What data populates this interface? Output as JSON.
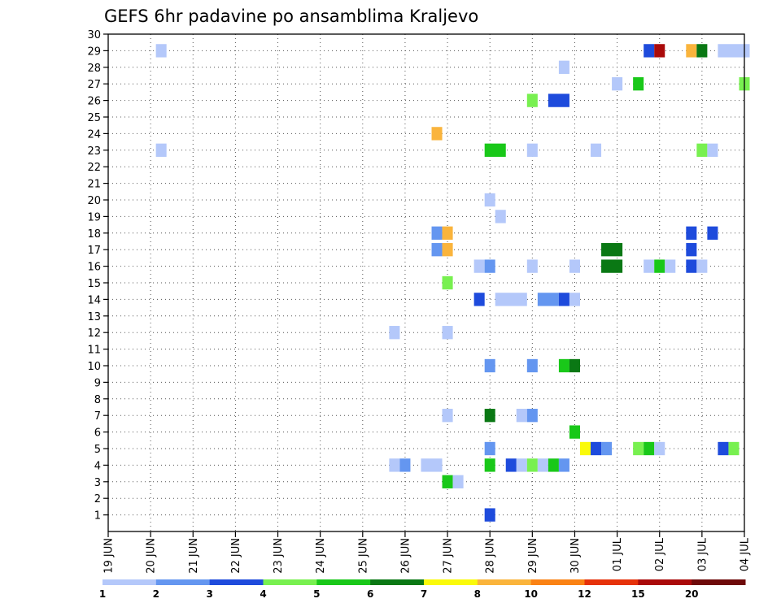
{
  "title": "GEFS 6hr padavine po ansamblima Kraljevo",
  "chart_data": {
    "type": "heatmap",
    "title": "GEFS 6hr padavine po ansamblima Kraljevo",
    "xlabel": "",
    "ylabel": "",
    "x_ticks": [
      "19 JUN",
      "20 JUN",
      "21 JUN",
      "22 JUN",
      "23 JUN",
      "24 JUN",
      "25 JUN",
      "26 JUN",
      "27 JUN",
      "28 JUN",
      "29 JUN",
      "30 JUN",
      "01 JUL",
      "02 JUL",
      "03 JUL",
      "04 JUL"
    ],
    "x_range_days": [
      0,
      15
    ],
    "y_ticks": [
      1,
      2,
      3,
      4,
      5,
      6,
      7,
      8,
      9,
      10,
      11,
      12,
      13,
      14,
      15,
      16,
      17,
      18,
      19,
      20,
      21,
      22,
      23,
      24,
      25,
      26,
      27,
      28,
      29,
      30
    ],
    "y_range": [
      0,
      30
    ],
    "grid": true,
    "colorbar": {
      "boundaries": [
        "1",
        "2",
        "3",
        "4",
        "5",
        "6",
        "7",
        "8",
        "10",
        "12",
        "15",
        "20"
      ],
      "colors": [
        "#b4c8fa",
        "#6496f0",
        "#1e4bdc",
        "#78f050",
        "#19c819",
        "#0a7814",
        "#fafa0a",
        "#fab43c",
        "#fa8214",
        "#e6320a",
        "#aa0a0a",
        "#6e0a0a"
      ]
    },
    "value_classes": {
      "1": "1-2",
      "2": "2-3",
      "3": "3-4",
      "4": "4-5",
      "5": "5-6",
      "6": "6-7",
      "7": "7-8",
      "8": "8-10"
    },
    "points": [
      {
        "m": 29,
        "d": 1.25,
        "c": 0,
        "w": 1
      },
      {
        "m": 29,
        "d": 12.75,
        "c": 2,
        "w": 1
      },
      {
        "m": 29,
        "d": 13.0,
        "c": 10,
        "w": 1
      },
      {
        "m": 29,
        "d": 13.75,
        "c": 7,
        "w": 1
      },
      {
        "m": 29,
        "d": 14.0,
        "c": 5,
        "w": 1
      },
      {
        "m": 29,
        "d": 14.5,
        "c": 0,
        "w": 3
      },
      {
        "m": 28,
        "d": 10.75,
        "c": 0,
        "w": 1
      },
      {
        "m": 27,
        "d": 12.0,
        "c": 0,
        "w": 1
      },
      {
        "m": 27,
        "d": 12.5,
        "c": 4,
        "w": 1
      },
      {
        "m": 27,
        "d": 15.0,
        "c": 3,
        "w": 1
      },
      {
        "m": 26,
        "d": 10.0,
        "c": 3,
        "w": 1
      },
      {
        "m": 26,
        "d": 10.5,
        "c": 2,
        "w": 2
      },
      {
        "m": 24,
        "d": 7.75,
        "c": 7,
        "w": 1
      },
      {
        "m": 23,
        "d": 1.25,
        "c": 0,
        "w": 1
      },
      {
        "m": 23,
        "d": 9.0,
        "c": 4,
        "w": 2
      },
      {
        "m": 23,
        "d": 10.0,
        "c": 0,
        "w": 1
      },
      {
        "m": 23,
        "d": 11.5,
        "c": 0,
        "w": 1
      },
      {
        "m": 23,
        "d": 14.0,
        "c": 3,
        "w": 1
      },
      {
        "m": 23,
        "d": 14.25,
        "c": 0,
        "w": 1
      },
      {
        "m": 20,
        "d": 9.0,
        "c": 0,
        "w": 1
      },
      {
        "m": 19,
        "d": 9.25,
        "c": 0,
        "w": 1
      },
      {
        "m": 18,
        "d": 7.75,
        "c": 1,
        "w": 1
      },
      {
        "m": 18,
        "d": 8.0,
        "c": 7,
        "w": 1
      },
      {
        "m": 18,
        "d": 13.75,
        "c": 2,
        "w": 1
      },
      {
        "m": 18,
        "d": 14.25,
        "c": 2,
        "w": 1
      },
      {
        "m": 17,
        "d": 7.75,
        "c": 1,
        "w": 1
      },
      {
        "m": 17,
        "d": 8.0,
        "c": 7,
        "w": 1
      },
      {
        "m": 17,
        "d": 11.75,
        "c": 5,
        "w": 2
      },
      {
        "m": 17,
        "d": 13.75,
        "c": 2,
        "w": 1
      },
      {
        "m": 16,
        "d": 8.75,
        "c": 0,
        "w": 1
      },
      {
        "m": 16,
        "d": 9.0,
        "c": 1,
        "w": 1
      },
      {
        "m": 16,
        "d": 10.0,
        "c": 0,
        "w": 1
      },
      {
        "m": 16,
        "d": 11.0,
        "c": 0,
        "w": 1
      },
      {
        "m": 16,
        "d": 11.75,
        "c": 5,
        "w": 2
      },
      {
        "m": 16,
        "d": 12.75,
        "c": 0,
        "w": 1
      },
      {
        "m": 16,
        "d": 13.0,
        "c": 4,
        "w": 1
      },
      {
        "m": 16,
        "d": 13.25,
        "c": 0,
        "w": 1
      },
      {
        "m": 16,
        "d": 13.75,
        "c": 2,
        "w": 1
      },
      {
        "m": 16,
        "d": 14.0,
        "c": 0,
        "w": 1
      },
      {
        "m": 15,
        "d": 8.0,
        "c": 3,
        "w": 1
      },
      {
        "m": 14,
        "d": 8.75,
        "c": 2,
        "w": 1
      },
      {
        "m": 14,
        "d": 9.25,
        "c": 0,
        "w": 3
      },
      {
        "m": 14,
        "d": 10.25,
        "c": 1,
        "w": 2
      },
      {
        "m": 14,
        "d": 10.75,
        "c": 2,
        "w": 1
      },
      {
        "m": 14,
        "d": 11.0,
        "c": 0,
        "w": 1
      },
      {
        "m": 12,
        "d": 6.75,
        "c": 0,
        "w": 1
      },
      {
        "m": 12,
        "d": 8.0,
        "c": 0,
        "w": 1
      },
      {
        "m": 10,
        "d": 9.0,
        "c": 1,
        "w": 1
      },
      {
        "m": 10,
        "d": 10.0,
        "c": 1,
        "w": 1
      },
      {
        "m": 10,
        "d": 10.75,
        "c": 4,
        "w": 1
      },
      {
        "m": 10,
        "d": 11.0,
        "c": 5,
        "w": 1
      },
      {
        "m": 7,
        "d": 8.0,
        "c": 0,
        "w": 1
      },
      {
        "m": 7,
        "d": 9.0,
        "c": 5,
        "w": 1
      },
      {
        "m": 7,
        "d": 9.75,
        "c": 0,
        "w": 1
      },
      {
        "m": 7,
        "d": 10.0,
        "c": 1,
        "w": 1
      },
      {
        "m": 6,
        "d": 11.0,
        "c": 4,
        "w": 1
      },
      {
        "m": 5,
        "d": 9.0,
        "c": 1,
        "w": 1
      },
      {
        "m": 5,
        "d": 11.25,
        "c": 6,
        "w": 1
      },
      {
        "m": 5,
        "d": 11.5,
        "c": 2,
        "w": 1
      },
      {
        "m": 5,
        "d": 11.75,
        "c": 1,
        "w": 1
      },
      {
        "m": 5,
        "d": 12.5,
        "c": 3,
        "w": 1
      },
      {
        "m": 5,
        "d": 12.75,
        "c": 4,
        "w": 1
      },
      {
        "m": 5,
        "d": 13.0,
        "c": 0,
        "w": 1
      },
      {
        "m": 5,
        "d": 14.5,
        "c": 2,
        "w": 1
      },
      {
        "m": 5,
        "d": 14.75,
        "c": 3,
        "w": 1
      },
      {
        "m": 4,
        "d": 6.75,
        "c": 0,
        "w": 1
      },
      {
        "m": 4,
        "d": 7.0,
        "c": 1,
        "w": 1
      },
      {
        "m": 4,
        "d": 7.5,
        "c": 0,
        "w": 2
      },
      {
        "m": 4,
        "d": 9.0,
        "c": 4,
        "w": 1
      },
      {
        "m": 4,
        "d": 9.5,
        "c": 2,
        "w": 1
      },
      {
        "m": 4,
        "d": 9.75,
        "c": 0,
        "w": 1
      },
      {
        "m": 4,
        "d": 10.0,
        "c": 3,
        "w": 1
      },
      {
        "m": 4,
        "d": 10.25,
        "c": 0,
        "w": 1
      },
      {
        "m": 4,
        "d": 10.5,
        "c": 4,
        "w": 1
      },
      {
        "m": 4,
        "d": 10.75,
        "c": 1,
        "w": 1
      },
      {
        "m": 3,
        "d": 8.0,
        "c": 4,
        "w": 1
      },
      {
        "m": 3,
        "d": 8.25,
        "c": 0,
        "w": 1
      },
      {
        "m": 1,
        "d": 9.0,
        "c": 2,
        "w": 1
      }
    ]
  }
}
